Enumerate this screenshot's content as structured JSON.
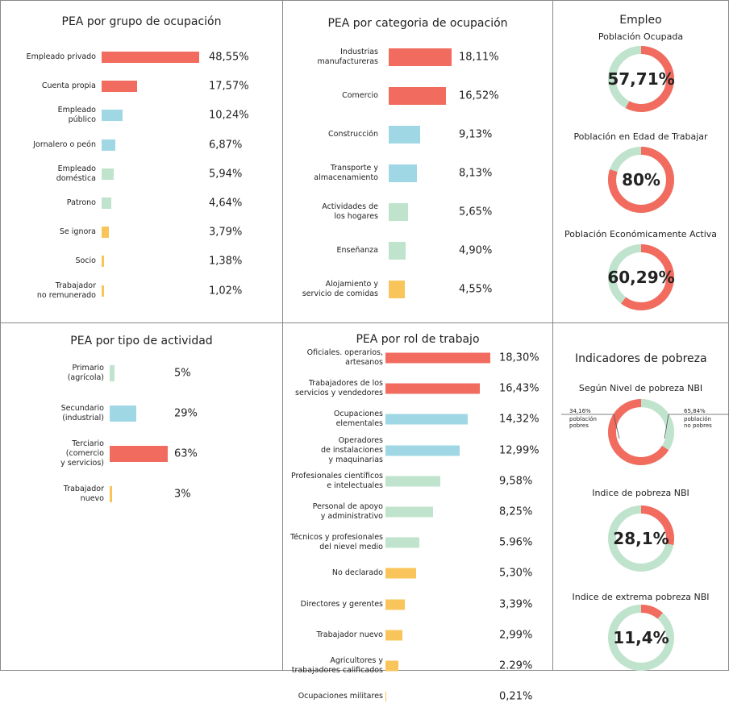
{
  "chart_data": [
    {
      "type": "hbar",
      "title": "PEA por grupo de ocupación",
      "categories": [
        "Empleado privado",
        "Cuenta propia",
        "Empleado\npúblico",
        "Jornalero o peón",
        "Empleado\ndoméstica",
        "Patrono",
        "Se ignora",
        "Socio",
        "Trabajador\nno remunerado"
      ],
      "values": [
        48.55,
        17.57,
        10.24,
        6.87,
        5.94,
        4.64,
        3.79,
        1.38,
        1.02
      ],
      "value_labels": [
        "48,55%",
        "17,57%",
        "10,24%",
        "6,87%",
        "5,94%",
        "4,64%",
        "3,79%",
        "1,38%",
        "1,02%"
      ],
      "colors": [
        "#f26b5f",
        "#f26b5f",
        "#9fd7e4",
        "#9fd7e4",
        "#bfe3cc",
        "#bfe3cc",
        "#f9c55a",
        "#f9c55a",
        "#f9c55a"
      ]
    },
    {
      "type": "hbar",
      "title": "PEA por categoria de ocupación",
      "categories": [
        "Industrias\nmanufactureras",
        "Comercio",
        "Construcción",
        "Transporte y\nalmacenamiento",
        "Actividades de\nlos hogares",
        "Enseñanza",
        "Alojamiento y\nservicio de comidas"
      ],
      "values": [
        18.11,
        16.52,
        9.13,
        8.13,
        5.65,
        4.9,
        4.55
      ],
      "value_labels": [
        "18,11%",
        "16,52%",
        "9,13%",
        "8,13%",
        "5,65%",
        "4,90%",
        "4,55%"
      ],
      "colors": [
        "#f26b5f",
        "#f26b5f",
        "#9fd7e4",
        "#9fd7e4",
        "#bfe3cc",
        "#bfe3cc",
        "#f9c55a"
      ]
    },
    {
      "type": "donut",
      "section_title": "Empleo",
      "title": "Población Ocupada",
      "values": [
        57.71
      ],
      "value_labels": [
        "57,71%"
      ],
      "colors": [
        "#f26b5f"
      ]
    },
    {
      "type": "donut",
      "title": "Población en Edad de Trabajar",
      "values": [
        80
      ],
      "value_labels": [
        "80%"
      ],
      "colors": [
        "#f26b5f"
      ]
    },
    {
      "type": "donut",
      "title": "Población Económicamente Activa",
      "values": [
        60.29
      ],
      "value_labels": [
        "60,29%"
      ],
      "colors": [
        "#f26b5f"
      ]
    },
    {
      "type": "hbar",
      "title": "PEA por tipo de actividad",
      "categories": [
        "Primario\n(agrícola)",
        "Secundario\n(industrial)",
        "Terciario\n(comercio\ny servicios)",
        "Trabajador\nnuevo"
      ],
      "values": [
        5,
        29,
        63,
        3
      ],
      "value_labels": [
        "5%",
        "29%",
        "63%",
        "3%"
      ],
      "colors": [
        "#bfe3cc",
        "#9fd7e4",
        "#f26b5f",
        "#f9c55a"
      ]
    },
    {
      "type": "hbar",
      "title": "PEA por rol de trabajo",
      "categories": [
        "Oficiales. operarios,\nartesanos",
        "Trabajadores de los\nservicios y vendedores",
        "Ocupaciones\nelementales",
        "Operadores\nde instalaciones\ny maquinarias",
        "Profesionales científicos\ne intelectuales",
        "Personal de apoyo\ny administrativo",
        "Técnicos y profesionales\ndel nievel medio",
        "No declarado",
        "Directores y gerentes",
        "Trabajador nuevo",
        "Agricultores y\ntrabajadores calificados",
        "Ocupaciones militares"
      ],
      "values": [
        18.3,
        16.43,
        14.32,
        12.99,
        9.58,
        8.25,
        5.96,
        5.3,
        3.39,
        2.99,
        2.29,
        0.21
      ],
      "value_labels": [
        "18,30%",
        "16,43%",
        "14,32%",
        "12,99%",
        "9,58%",
        "8,25%",
        "5.96%",
        "5,30%",
        "3,39%",
        "2,99%",
        "2.29%",
        "0,21%"
      ],
      "colors": [
        "#f26b5f",
        "#f26b5f",
        "#9fd7e4",
        "#9fd7e4",
        "#bfe3cc",
        "#bfe3cc",
        "#bfe3cc",
        "#f9c55a",
        "#f9c55a",
        "#f9c55a",
        "#f9c55a",
        "#f9c55a"
      ]
    },
    {
      "type": "donut",
      "section_title": "Indicadores de pobreza",
      "title": "Según Nivel de pobreza NBI",
      "categories": [
        "población\npobres",
        "población\nno pobres"
      ],
      "values": [
        34.16,
        65.84
      ],
      "value_labels": [
        "34,16%",
        "65,84%"
      ],
      "colors": [
        "#bfe3cc",
        "#f26b5f"
      ]
    },
    {
      "type": "donut",
      "title": "Indice de pobreza NBI",
      "values": [
        28.1
      ],
      "value_labels": [
        "28,1%"
      ],
      "colors": [
        "#f26b5f"
      ]
    },
    {
      "type": "donut",
      "title": "Indice de extrema pobreza NBI",
      "values": [
        11.4
      ],
      "value_labels": [
        "11,4%"
      ],
      "colors": [
        "#f26b5f"
      ]
    }
  ]
}
